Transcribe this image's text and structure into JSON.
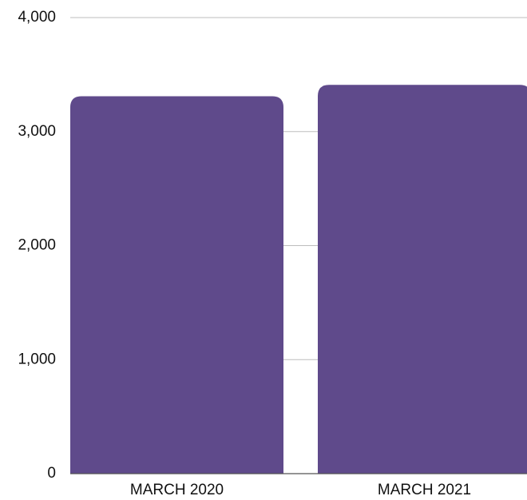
{
  "chart_data": {
    "type": "bar",
    "categories": [
      "MARCH 2020",
      "MARCH 2021"
    ],
    "values": [
      3310,
      3410
    ],
    "ylim": [
      0,
      4000
    ],
    "yticks": [
      0,
      1000,
      2000,
      3000,
      4000
    ],
    "ytick_labels": [
      "0",
      "1,000",
      "2,000",
      "3,000",
      "4,000"
    ],
    "grid": true,
    "bar_color": "#5f4a8b",
    "title": "",
    "xlabel": "",
    "ylabel": ""
  }
}
